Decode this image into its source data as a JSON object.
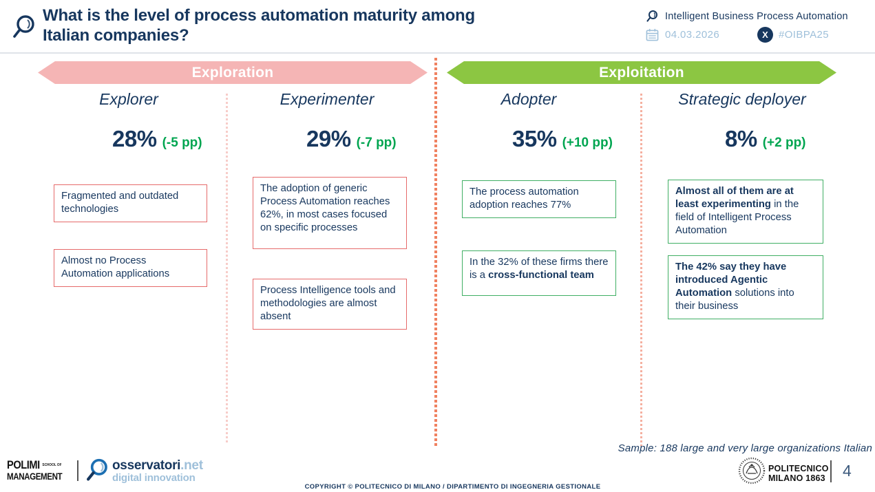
{
  "colors": {
    "navy": "#17375e",
    "light_blue": "#9fc0da",
    "delta_green": "#00a550",
    "banner_green": "#8cc642",
    "banner_pink": "#f5b5b5",
    "box_border_red": "#e66a6a",
    "box_border_green": "#3fae63",
    "center_dots_orange": "#f08160"
  },
  "header": {
    "title": "What is the level of process automation maturity among Italian companies?",
    "event_name": "Intelligent Business Process Automation",
    "event_date": "04.03.2026",
    "event_hashtag": "#OIBPA25",
    "x_glyph": "X"
  },
  "phases": [
    {
      "label": "Exploration"
    },
    {
      "label": "Exploitation"
    }
  ],
  "columns": [
    {
      "name": "Explorer",
      "value": "28%",
      "delta": "(-5 pp)",
      "boxes": [
        {
          "segments": [
            {
              "text": "Fragmented and outdated technologies",
              "bold": false
            }
          ]
        },
        {
          "segments": [
            {
              "text": "Almost no Process Automation applications",
              "bold": false
            }
          ]
        }
      ]
    },
    {
      "name": "Experimenter",
      "value": "29%",
      "delta": "(-7 pp)",
      "boxes": [
        {
          "segments": [
            {
              "text": "The adoption of generic Process Automation reaches 62%, in most cases focused on specific processes",
              "bold": false
            }
          ]
        },
        {
          "segments": [
            {
              "text": "Process Intelligence tools and methodologies are almost absent",
              "bold": false
            }
          ]
        }
      ]
    },
    {
      "name": "Adopter",
      "value": "35%",
      "delta": "(+10 pp)",
      "boxes": [
        {
          "segments": [
            {
              "text": "The process automation adoption reaches 77%",
              "bold": false
            }
          ]
        },
        {
          "segments": [
            {
              "text": "In the 32% of these firms there is a ",
              "bold": false
            },
            {
              "text": "cross-functional team",
              "bold": true
            }
          ]
        }
      ]
    },
    {
      "name": "Strategic deployer",
      "value": "8%",
      "delta": "(+2 pp)",
      "boxes": [
        {
          "segments": [
            {
              "text": "Almost all of them are at least experimenting",
              "bold": true
            },
            {
              "text": " in the field of Intelligent Process Automation",
              "bold": false
            }
          ]
        },
        {
          "segments": [
            {
              "text": "The 42% say they have introduced Agentic Automation",
              "bold": true
            },
            {
              "text": " solutions into their business",
              "bold": false
            }
          ]
        }
      ]
    }
  ],
  "sample_note": "Sample: 188 large and very large organizations Italian",
  "footer": {
    "polimi_word": "POLIMI",
    "polimi_small": "SCHOOL OF",
    "polimi_word2": "MANAGEMENT",
    "osservatori_name": "osservatori",
    "osservatori_tld": ".net",
    "osservatori_sub": "digital innovation",
    "politecnico_line1": "POLITECNICO",
    "politecnico_line2": "MILANO 1863",
    "page_number": "4",
    "copyright": "COPYRIGHT © POLITECNICO DI MILANO / DIPARTIMENTO DI INGEGNERIA GESTIONALE"
  }
}
